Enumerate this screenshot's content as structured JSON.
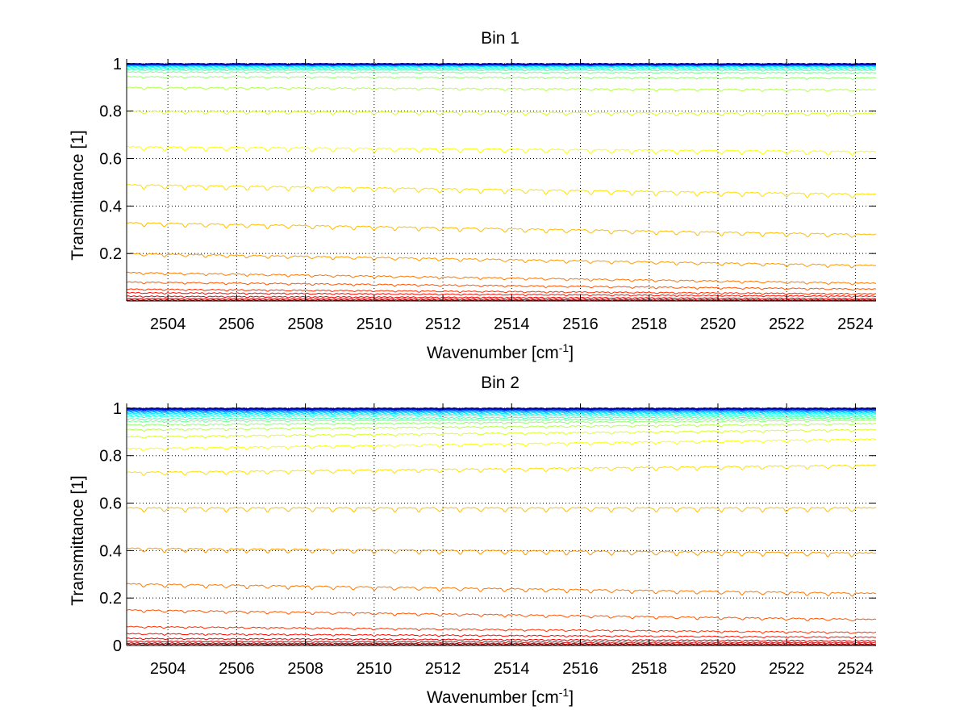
{
  "chart_data": [
    {
      "type": "line",
      "title": "Bin 1",
      "xlabel": "Wavenumber [cm",
      "xlabel_sup": "-1",
      "xlabel_end": "]",
      "ylabel": "Transmittance [1]",
      "xlim": [
        2502.8,
        2524.6
      ],
      "ylim": [
        0.0,
        1.02
      ],
      "x_ticks": [
        2504,
        2506,
        2508,
        2510,
        2512,
        2514,
        2516,
        2518,
        2520,
        2522,
        2524
      ],
      "x_tick_labels": [
        "2504",
        "2506",
        "2508",
        "2510",
        "2512",
        "2514",
        "2516",
        "2518",
        "2520",
        "2522",
        "2524"
      ],
      "y_ticks": [
        0.2,
        0.4,
        0.6,
        0.8,
        1.0
      ],
      "y_tick_labels": [
        "0.2",
        "0.4",
        "0.6",
        "0.8",
        "1"
      ],
      "grid": true,
      "colormap": "jet",
      "series_count": 30,
      "baselines_start": [
        0.0,
        0.004,
        0.01,
        0.02,
        0.035,
        0.05,
        0.08,
        0.12,
        0.2,
        0.33,
        0.49,
        0.65,
        0.8,
        0.9,
        0.945,
        0.965,
        0.975,
        0.982,
        0.987,
        0.99,
        0.992,
        0.994,
        0.995,
        0.996,
        0.997,
        0.998,
        0.998,
        0.999,
        0.999,
        1.0
      ],
      "baselines_end": [
        0.0,
        0.002,
        0.005,
        0.01,
        0.02,
        0.03,
        0.05,
        0.075,
        0.15,
        0.28,
        0.45,
        0.63,
        0.79,
        0.89,
        0.94,
        0.962,
        0.973,
        0.98,
        0.986,
        0.989,
        0.991,
        0.993,
        0.994,
        0.995,
        0.996,
        0.997,
        0.997,
        0.998,
        0.999,
        1.0
      ],
      "absorption_lines": [
        2503.3,
        2503.9,
        2504.5,
        2505.1,
        2505.7,
        2506.3,
        2506.9,
        2507.5,
        2508.2,
        2508.8,
        2509.4,
        2510.0,
        2510.6,
        2511.3,
        2511.9,
        2512.5,
        2513.1,
        2513.8,
        2514.4,
        2515.0,
        2515.6,
        2516.3,
        2516.9,
        2517.5,
        2518.2,
        2518.8,
        2519.4,
        2520.1,
        2520.7,
        2521.3,
        2522.0,
        2522.6,
        2523.2,
        2523.9
      ]
    },
    {
      "type": "line",
      "title": "Bin 2",
      "xlabel": "Wavenumber [cm",
      "xlabel_sup": "-1",
      "xlabel_end": "]",
      "ylabel": "Transmittance [1]",
      "xlim": [
        2502.8,
        2524.6
      ],
      "ylim": [
        0.0,
        1.02
      ],
      "x_ticks": [
        2504,
        2506,
        2508,
        2510,
        2512,
        2514,
        2516,
        2518,
        2520,
        2522,
        2524
      ],
      "x_tick_labels": [
        "2504",
        "2506",
        "2508",
        "2510",
        "2512",
        "2514",
        "2516",
        "2518",
        "2520",
        "2522",
        "2524"
      ],
      "y_ticks": [
        0.0,
        0.2,
        0.4,
        0.6,
        0.8,
        1.0
      ],
      "y_tick_labels": [
        "0",
        "0.2",
        "0.4",
        "0.6",
        "0.8",
        "1"
      ],
      "grid": true,
      "colormap": "jet",
      "series_count": 30,
      "baselines_start": [
        0.005,
        0.01,
        0.018,
        0.03,
        0.05,
        0.08,
        0.15,
        0.26,
        0.41,
        0.58,
        0.73,
        0.83,
        0.88,
        0.91,
        0.93,
        0.945,
        0.955,
        0.965,
        0.972,
        0.978,
        0.983,
        0.987,
        0.99,
        0.992,
        0.994,
        0.996,
        0.997,
        0.998,
        0.999,
        1.0
      ],
      "baselines_end": [
        0.003,
        0.006,
        0.012,
        0.02,
        0.035,
        0.055,
        0.11,
        0.22,
        0.39,
        0.58,
        0.76,
        0.87,
        0.91,
        0.935,
        0.95,
        0.958,
        0.965,
        0.972,
        0.978,
        0.982,
        0.986,
        0.989,
        0.991,
        0.993,
        0.995,
        0.996,
        0.997,
        0.998,
        0.999,
        1.0
      ],
      "absorption_lines": [
        2503.3,
        2503.9,
        2504.5,
        2505.1,
        2505.7,
        2506.3,
        2506.9,
        2507.5,
        2508.2,
        2508.8,
        2509.4,
        2510.0,
        2510.6,
        2511.3,
        2511.9,
        2512.5,
        2513.1,
        2513.8,
        2514.4,
        2515.0,
        2515.6,
        2516.3,
        2516.9,
        2517.5,
        2518.2,
        2518.8,
        2519.4,
        2520.1,
        2520.7,
        2521.3,
        2522.0,
        2522.6,
        2523.2,
        2523.9
      ]
    }
  ]
}
